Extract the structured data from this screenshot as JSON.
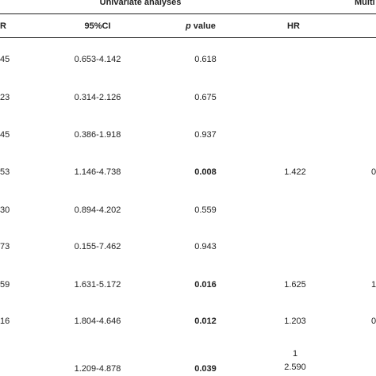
{
  "header": {
    "group_univariate": "Univariate analyses",
    "group_multivariate": "Multi",
    "col_hr_left": "R",
    "col_ci": "95%CI",
    "col_p_italic": "p",
    "col_p_rest": " value",
    "col_hr_multi": "HR"
  },
  "rows": [
    {
      "hr": "45",
      "ci": "0.653-4.142",
      "p": "0.618",
      "p_bold": false,
      "m_hr": "",
      "m_next": ""
    },
    {
      "hr": "23",
      "ci": "0.314-2.126",
      "p": "0.675",
      "p_bold": false,
      "m_hr": "",
      "m_next": ""
    },
    {
      "hr": "45",
      "ci": "0.386-1.918",
      "p": "0.937",
      "p_bold": false,
      "m_hr": "",
      "m_next": ""
    },
    {
      "hr": "53",
      "ci": "1.146-4.738",
      "p": "0.008",
      "p_bold": true,
      "m_hr": "1.422",
      "m_next": "0"
    },
    {
      "hr": "30",
      "ci": "0.894-4.202",
      "p": "0.559",
      "p_bold": false,
      "m_hr": "",
      "m_next": ""
    },
    {
      "hr": "73",
      "ci": "0.155-7.462",
      "p": "0.943",
      "p_bold": false,
      "m_hr": "",
      "m_next": ""
    },
    {
      "hr": "59",
      "ci": "1.631-5.172",
      "p": "0.016",
      "p_bold": true,
      "m_hr": "1.625",
      "m_next": "1"
    },
    {
      "hr": "16",
      "ci": "1.804-4.646",
      "p": "0.012",
      "p_bold": true,
      "m_hr": "1.203",
      "m_next": "0"
    },
    {
      "hr": "",
      "ci": "1.209-4.878",
      "p": "0.039",
      "p_bold": true,
      "m_hr_top": "1",
      "m_hr": "2.590",
      "m_next": ""
    }
  ]
}
